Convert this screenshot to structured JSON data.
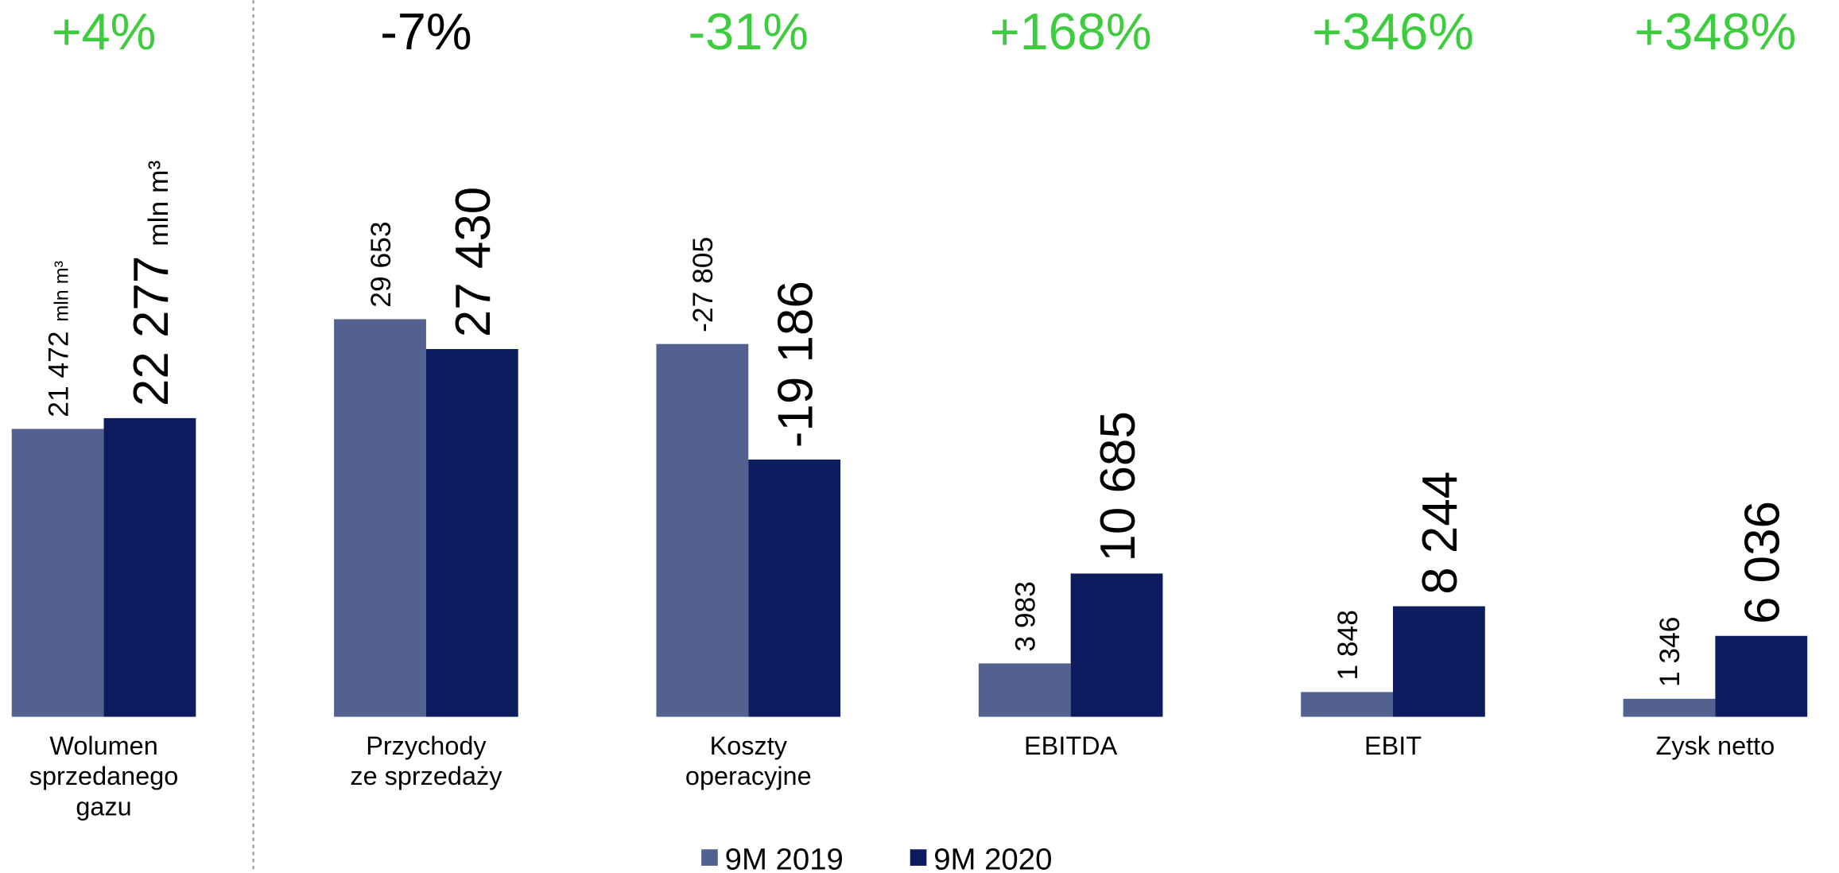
{
  "chart_data": {
    "type": "bar",
    "categories": [
      "Wolumen\nsprzedanego\ngazu",
      "Przychody\nze sprzedaży",
      "Koszty\noperacyjne",
      "EBITDA",
      "EBIT",
      "Zysk netto"
    ],
    "changes": [
      "+4%",
      "-7%",
      "-31%",
      "+168%",
      "+346%",
      "+348%"
    ],
    "change_colors": [
      "#3dcc3d",
      "#000000",
      "#3dcc3d",
      "#3dcc3d",
      "#3dcc3d",
      "#3dcc3d"
    ],
    "volume_unit": "mln m³",
    "series": [
      {
        "name": "9M 2019",
        "color": "#536190",
        "values": [
          21472,
          29653,
          -27805,
          3983,
          1848,
          1346
        ],
        "value_labels": [
          "21 472",
          "29 653",
          "-27 805",
          "3 983",
          "1 848",
          "1 346"
        ]
      },
      {
        "name": "9M 2020",
        "color": "#0d1c5e",
        "values": [
          22277,
          27430,
          -19186,
          10685,
          8244,
          6036
        ],
        "value_labels": [
          "22 277",
          "27 430",
          "-19 186",
          "10 685",
          "8 244",
          "6 036"
        ]
      }
    ]
  }
}
